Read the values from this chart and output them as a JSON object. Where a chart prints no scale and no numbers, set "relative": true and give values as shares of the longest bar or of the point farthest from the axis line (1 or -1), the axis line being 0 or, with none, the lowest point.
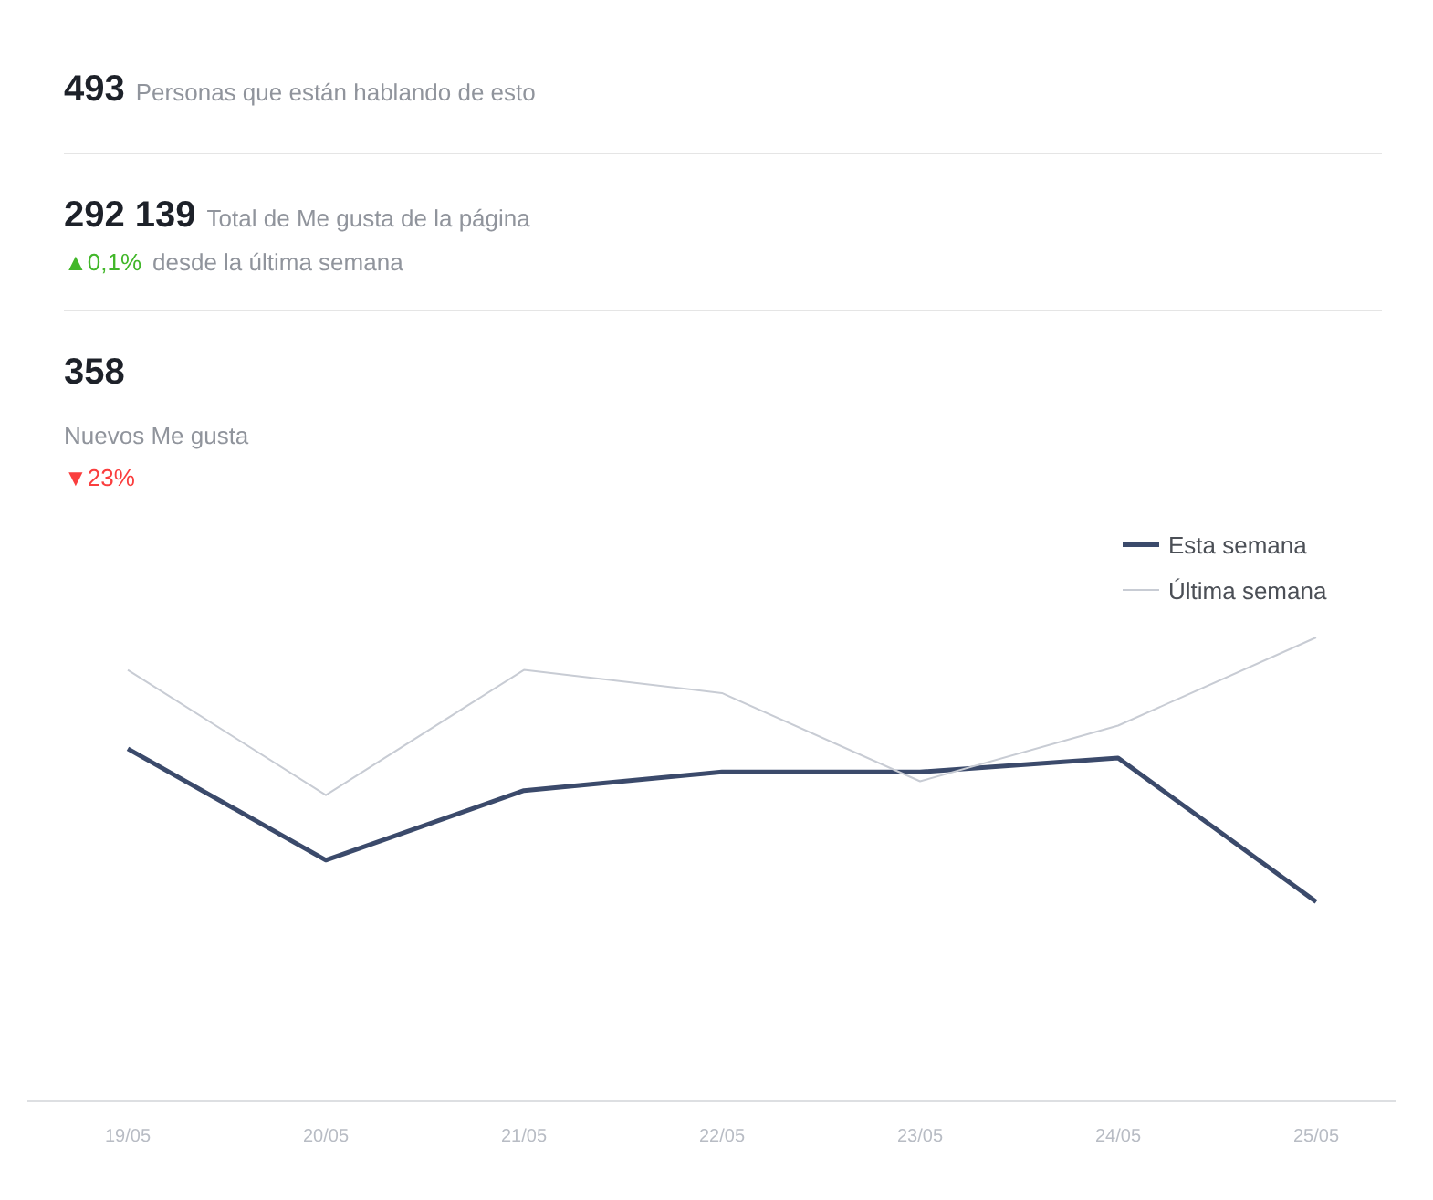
{
  "chart_data": {
    "type": "line",
    "relative": true,
    "categories": [
      "19/05",
      "20/05",
      "21/05",
      "22/05",
      "23/05",
      "24/05",
      "25/05"
    ],
    "series": [
      {
        "name": "Esta semana",
        "color": "#3b4a6b",
        "values": [
          0.76,
          0.52,
          0.67,
          0.71,
          0.71,
          0.74,
          0.43
        ]
      },
      {
        "name": "Última semana",
        "color": "#c8ccd4",
        "values": [
          0.93,
          0.66,
          0.93,
          0.88,
          0.69,
          0.81,
          1
        ]
      }
    ],
    "legend": "top right",
    "grid": false,
    "marker": "none",
    "line_style": "solid",
    "annotations": [
      "493",
      "Personas que están hablando de esto",
      "292 139",
      "Total de Me gusta de la página",
      "▲0,1%",
      "desde la última semana",
      "358",
      "Nuevos Me gusta",
      "▼23%"
    ]
  }
}
